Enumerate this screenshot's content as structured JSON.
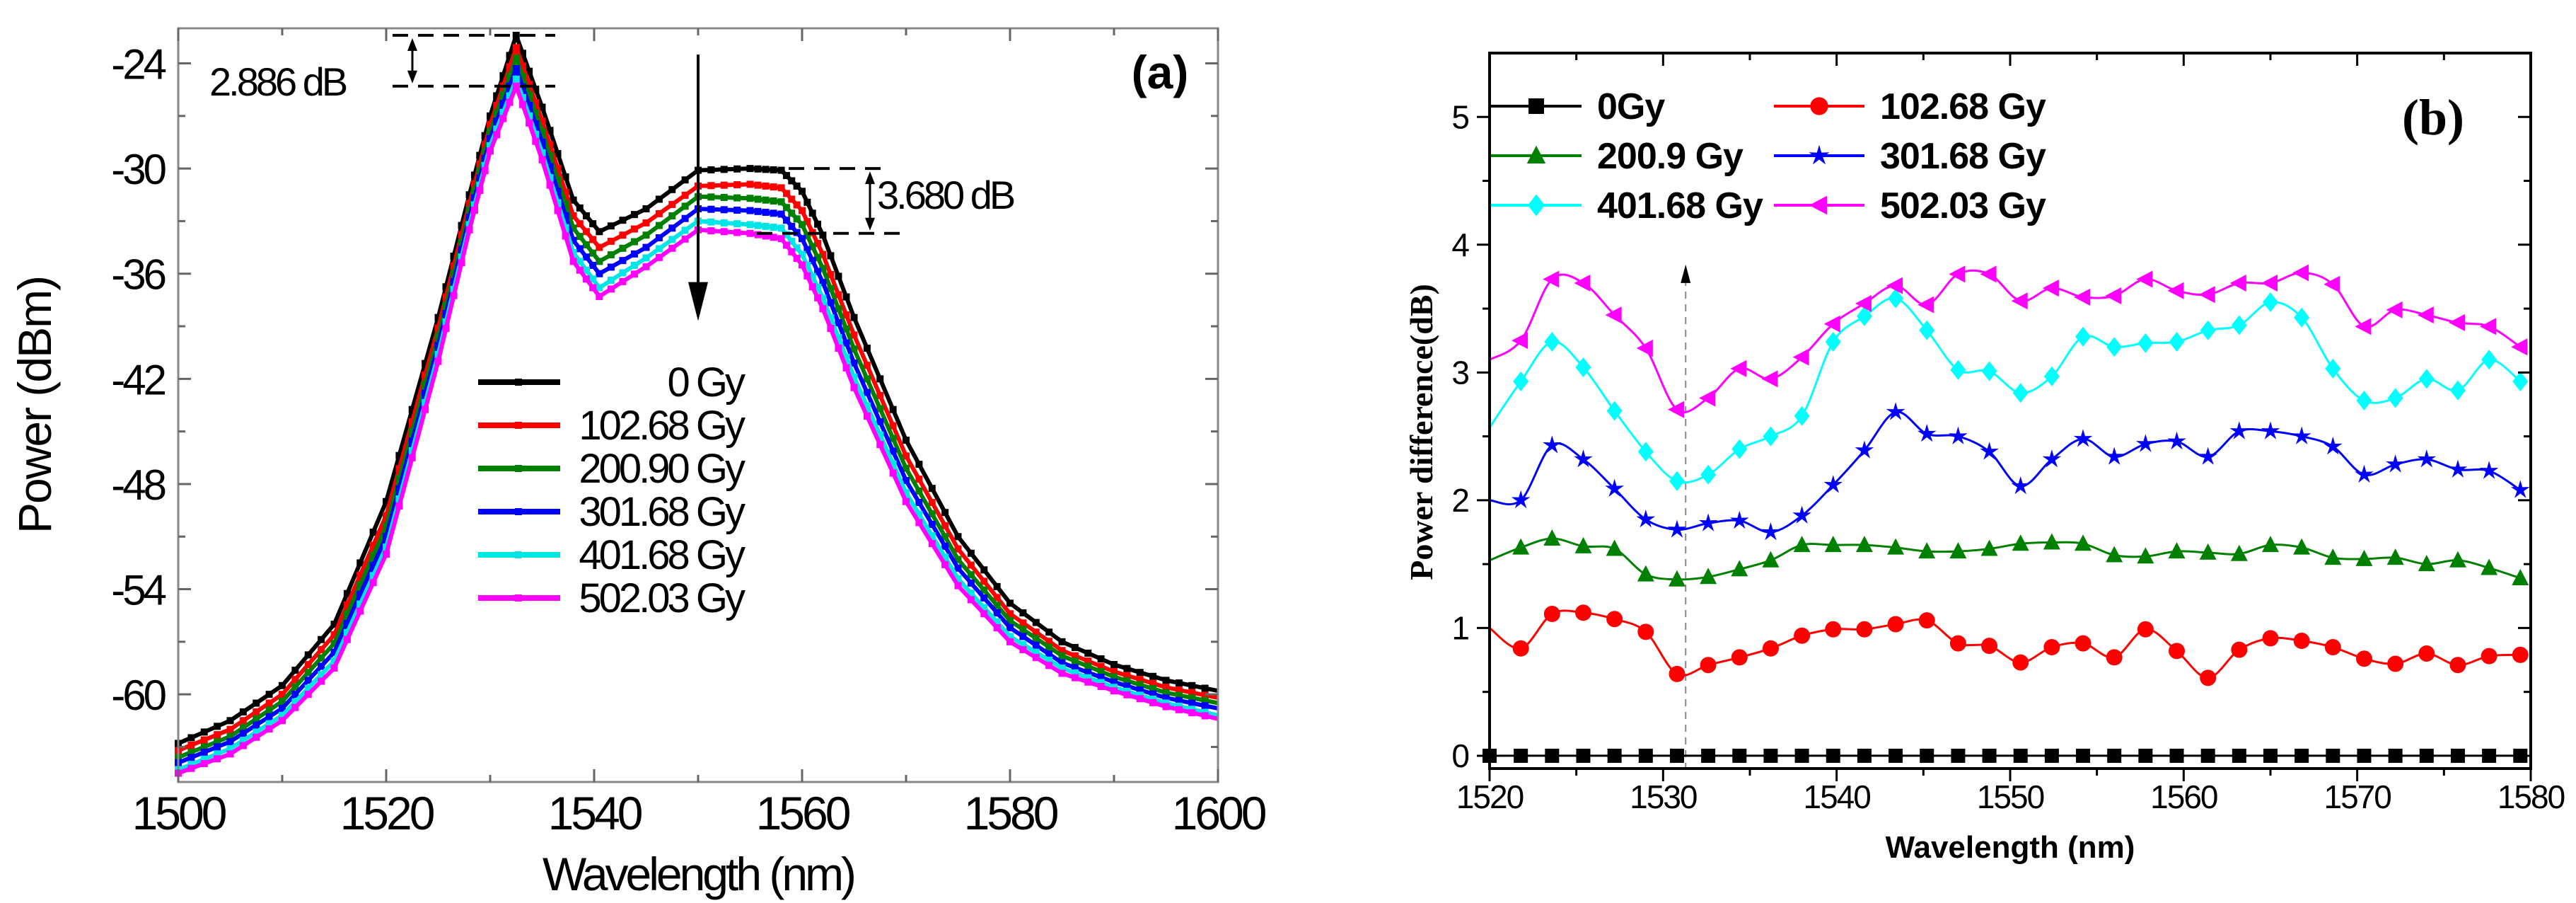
{
  "chart_data": [
    {
      "panel_label": "(a)",
      "type": "line",
      "xlabel": "Wavelength (nm)",
      "ylabel": "Power (dBm)",
      "xlim": [
        1500,
        1600
      ],
      "ylim": [
        -65,
        -22
      ],
      "xticks": [
        1500,
        1520,
        1540,
        1560,
        1580,
        1600
      ],
      "yticks": [
        -24,
        -30,
        -36,
        -42,
        -48,
        -54,
        -60
      ],
      "grid": false,
      "legend_position": "center-bottom",
      "x": [
        1500,
        1505,
        1510,
        1515,
        1520,
        1525,
        1528,
        1530,
        1532.5,
        1535,
        1538,
        1540.5,
        1545,
        1550,
        1555,
        1558,
        1560,
        1562,
        1565,
        1570,
        1575,
        1580,
        1585,
        1590,
        1595,
        1600
      ],
      "series": [
        {
          "name": "0 Gy",
          "color": "#000000",
          "values": [
            -62.8,
            -61.5,
            -59.5,
            -56,
            -49,
            -38.5,
            -31.5,
            -27,
            -22.4,
            -26.5,
            -31.8,
            -33.6,
            -32.3,
            -30.1,
            -30,
            -30.1,
            -31.3,
            -33.8,
            -38.5,
            -45.5,
            -51,
            -54.8,
            -57,
            -58.3,
            -59.2,
            -59.8
          ]
        },
        {
          "name": "102.68 Gy",
          "color": "#ff0000",
          "values": [
            -63.2,
            -62.0,
            -60.0,
            -56.6,
            -49.8,
            -39.1,
            -32.0,
            -27.5,
            -23.1,
            -27.3,
            -32.7,
            -34.5,
            -33.1,
            -31.0,
            -30.9,
            -31.1,
            -32.4,
            -34.9,
            -39.5,
            -46.4,
            -51.7,
            -55.4,
            -57.5,
            -58.7,
            -59.6,
            -60.2
          ]
        },
        {
          "name": "200.90 Gy",
          "color": "#008000",
          "values": [
            -63.6,
            -62.4,
            -60.4,
            -57.1,
            -50.4,
            -39.6,
            -32.4,
            -27.9,
            -23.7,
            -27.9,
            -33.4,
            -35.3,
            -33.8,
            -31.6,
            -31.7,
            -31.9,
            -33.2,
            -35.7,
            -40.3,
            -47.1,
            -52.3,
            -55.8,
            -57.8,
            -59.0,
            -59.9,
            -60.5
          ]
        },
        {
          "name": "301.68 Gy",
          "color": "#0000ff",
          "values": [
            -63.9,
            -62.7,
            -60.8,
            -57.6,
            -51.0,
            -40.1,
            -32.8,
            -28.3,
            -24.3,
            -28.5,
            -34.1,
            -36.0,
            -34.5,
            -32.3,
            -32.4,
            -32.6,
            -34.0,
            -36.5,
            -41.1,
            -47.8,
            -52.8,
            -56.2,
            -58.2,
            -59.3,
            -60.2,
            -60.8
          ]
        },
        {
          "name": "401.68 Gy",
          "color": "#00e5e5",
          "values": [
            -64.3,
            -63.1,
            -61.2,
            -58.1,
            -51.6,
            -40.6,
            -33.2,
            -28.7,
            -24.9,
            -29.1,
            -34.8,
            -36.8,
            -35.1,
            -33.0,
            -33.2,
            -33.4,
            -34.9,
            -37.4,
            -41.9,
            -48.5,
            -53.4,
            -56.7,
            -58.5,
            -59.6,
            -60.5,
            -61.2
          ]
        },
        {
          "name": "502.03 Gy",
          "color": "#ff00ff",
          "values": [
            -64.5,
            -63.4,
            -61.5,
            -58.5,
            -52,
            -41,
            -33.5,
            -29,
            -25.3,
            -29.5,
            -35.3,
            -37.3,
            -35.6,
            -33.5,
            -33.7,
            -34,
            -35.5,
            -38,
            -42.5,
            -49,
            -53.8,
            -57,
            -58.8,
            -59.8,
            -60.7,
            -61.4
          ]
        }
      ],
      "annotations": [
        {
          "text": "2.886 dB",
          "y_top": -22.4,
          "y_bottom": -25.3,
          "x_from": 1525,
          "x_to": 1535
        },
        {
          "text": "3.680 dB",
          "y_top": -30.0,
          "y_bottom": -33.7,
          "x_from": 1557,
          "x_to": 1570
        },
        {
          "type": "arrow-down",
          "x": 1550,
          "y_from": -23.5,
          "y_to": -38.5
        }
      ]
    },
    {
      "panel_label": "(b)",
      "type": "line",
      "xlabel": "Wavelength (nm)",
      "ylabel": "Power difference(dB)",
      "xlim": [
        1520,
        1580
      ],
      "ylim": [
        -0.1,
        5.5
      ],
      "xticks": [
        1520,
        1530,
        1540,
        1550,
        1560,
        1570,
        1580
      ],
      "yticks": [
        0,
        1,
        2,
        3,
        4,
        5
      ],
      "grid": false,
      "legend_position": "top-left",
      "x": [
        1520,
        1521.8,
        1523.6,
        1525.4,
        1527.2,
        1529,
        1530.8,
        1532.6,
        1534.4,
        1536.2,
        1538,
        1539.8,
        1541.6,
        1543.4,
        1545.2,
        1547,
        1548.8,
        1550.6,
        1552.4,
        1554.2,
        1556,
        1557.8,
        1559.6,
        1561.4,
        1563.2,
        1565,
        1566.8,
        1568.6,
        1570.4,
        1572.2,
        1574,
        1575.8,
        1577.6,
        1579.4
      ],
      "series": [
        {
          "name": "0Gy",
          "color": "#000000",
          "marker": "square",
          "values": [
            0,
            0,
            0,
            0,
            0,
            0,
            0,
            0,
            0,
            0,
            0,
            0,
            0,
            0,
            0,
            0,
            0,
            0,
            0,
            0,
            0,
            0,
            0,
            0,
            0,
            0,
            0,
            0,
            0,
            0,
            0,
            0,
            0,
            0
          ]
        },
        {
          "name": "102.68 Gy",
          "color": "#ff0000",
          "marker": "circle",
          "values": [
            1.0,
            0.84,
            1.11,
            1.12,
            1.07,
            0.97,
            0.64,
            0.71,
            0.77,
            0.84,
            0.94,
            0.99,
            0.99,
            1.03,
            1.06,
            0.88,
            0.86,
            0.73,
            0.85,
            0.88,
            0.77,
            0.99,
            0.82,
            0.61,
            0.83,
            0.92,
            0.9,
            0.85,
            0.76,
            0.72,
            0.8,
            0.71,
            0.78,
            0.79
          ]
        },
        {
          "name": "200.9 Gy",
          "color": "#008000",
          "marker": "triangle-up",
          "values": [
            1.53,
            1.63,
            1.7,
            1.64,
            1.62,
            1.42,
            1.38,
            1.4,
            1.46,
            1.53,
            1.65,
            1.65,
            1.65,
            1.63,
            1.6,
            1.6,
            1.62,
            1.66,
            1.67,
            1.66,
            1.57,
            1.56,
            1.6,
            1.59,
            1.58,
            1.65,
            1.63,
            1.55,
            1.54,
            1.55,
            1.5,
            1.53,
            1.47,
            1.39
          ]
        },
        {
          "name": "301.68 Gy",
          "color": "#0000ff",
          "marker": "star",
          "values": [
            2.0,
            2.0,
            2.43,
            2.32,
            2.09,
            1.85,
            1.77,
            1.82,
            1.84,
            1.75,
            1.88,
            2.12,
            2.39,
            2.69,
            2.52,
            2.5,
            2.38,
            2.11,
            2.32,
            2.48,
            2.34,
            2.44,
            2.46,
            2.34,
            2.54,
            2.54,
            2.5,
            2.42,
            2.2,
            2.28,
            2.32,
            2.24,
            2.23,
            2.08
          ]
        },
        {
          "name": "401.68 Gy",
          "color": "#00ffff",
          "marker": "diamond",
          "values": [
            2.57,
            2.93,
            3.24,
            3.04,
            2.7,
            2.38,
            2.15,
            2.2,
            2.4,
            2.5,
            2.66,
            3.24,
            3.44,
            3.58,
            3.33,
            3.02,
            3.01,
            2.84,
            2.97,
            3.28,
            3.2,
            3.23,
            3.24,
            3.33,
            3.37,
            3.55,
            3.43,
            3.03,
            2.78,
            2.8,
            2.95,
            2.86,
            3.1,
            2.93
          ]
        },
        {
          "name": "502.03 Gy",
          "color": "#ff00ff",
          "marker": "triangle-left",
          "values": [
            3.1,
            3.25,
            3.73,
            3.7,
            3.45,
            3.19,
            2.71,
            2.8,
            3.03,
            2.95,
            3.12,
            3.38,
            3.54,
            3.68,
            3.53,
            3.77,
            3.77,
            3.56,
            3.66,
            3.59,
            3.6,
            3.73,
            3.64,
            3.61,
            3.7,
            3.7,
            3.78,
            3.69,
            3.36,
            3.49,
            3.45,
            3.39,
            3.36,
            3.2
          ]
        }
      ],
      "annotations": [
        {
          "type": "dashed-arrow-up",
          "x": 1531.3,
          "y_from": 0,
          "y_to": 3.8
        }
      ]
    }
  ]
}
